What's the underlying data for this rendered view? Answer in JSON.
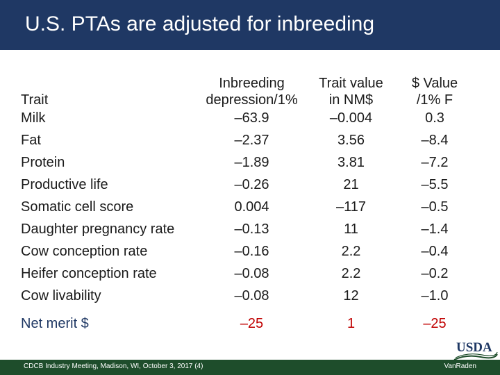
{
  "slide": {
    "title": "U.S. PTAs are adjusted for inbreeding"
  },
  "table": {
    "headers": {
      "trait": "Trait",
      "col1_line1": "Inbreeding",
      "col1_line2": "depression/1%",
      "col2_line1": "Trait value",
      "col2_line2": "in NM$",
      "col3_line1": "$ Value",
      "col3_line2": "/1% F"
    },
    "rows": [
      {
        "trait": "Milk",
        "depression": "–63.9",
        "value": "–0.004",
        "dollar": "0.3"
      },
      {
        "trait": "Fat",
        "depression": "–2.37",
        "value": "3.56",
        "dollar": "–8.4"
      },
      {
        "trait": "Protein",
        "depression": "–1.89",
        "value": "3.81",
        "dollar": "–7.2"
      },
      {
        "trait": "Productive life",
        "depression": "–0.26",
        "value": "21",
        "dollar": "–5.5"
      },
      {
        "trait": "Somatic cell score",
        "depression": "0.004",
        "value": "–117",
        "dollar": "–0.5"
      },
      {
        "trait": "Daughter pregnancy rate",
        "depression": "–0.13",
        "value": "11",
        "dollar": "–1.4"
      },
      {
        "trait": "Cow conception rate",
        "depression": "–0.16",
        "value": "2.2",
        "dollar": "–0.4"
      },
      {
        "trait": "Heifer conception rate",
        "depression": "–0.08",
        "value": "2.2",
        "dollar": "–0.2"
      },
      {
        "trait": "Cow livability",
        "depression": "–0.08",
        "value": "12",
        "dollar": "–1.0"
      }
    ],
    "net_merit": {
      "trait": "Net merit $",
      "depression": "–25",
      "value": "1",
      "dollar": "–25"
    }
  },
  "footer": {
    "left": "CDCB Industry Meeting, Madison, WI, October 3, 2017 (4)",
    "right": "VanRaden"
  },
  "logo": {
    "text": "USDA"
  },
  "colors": {
    "title_bar": "#1f3864",
    "footer_bar": "#1e4d2b",
    "accent_red": "#c00000",
    "net_merit_blue": "#1f3864"
  }
}
